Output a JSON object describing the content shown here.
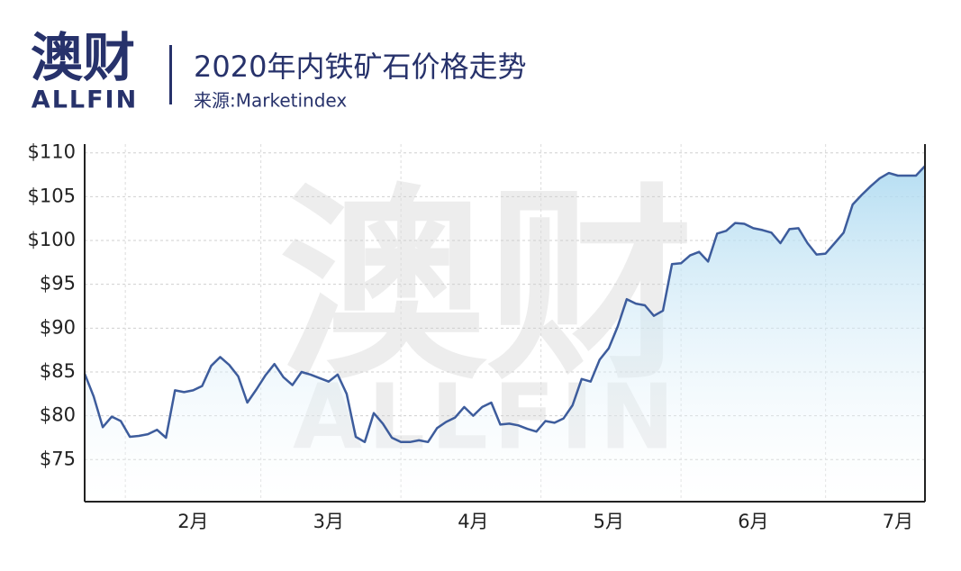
{
  "logo": {
    "mark": "澳财",
    "wordmark": "ALLFIN"
  },
  "chart_data": {
    "type": "line",
    "title": "2020年内铁矿石价格走势",
    "subtitle": "来源:Marketindex",
    "watermark": {
      "mark": "澳财",
      "wordmark": "ALLFIN"
    },
    "color": "#3d5c9c",
    "fill": true,
    "grid": true,
    "categories": [
      null,
      null,
      null,
      null,
      null,
      null,
      null,
      null,
      null,
      null,
      null,
      null,
      "2月",
      null,
      null,
      null,
      null,
      null,
      null,
      null,
      null,
      null,
      null,
      null,
      null,
      null,
      null,
      "3月",
      null,
      null,
      null,
      null,
      null,
      null,
      null,
      null,
      null,
      null,
      null,
      null,
      null,
      null,
      null,
      "4月",
      null,
      null,
      null,
      null,
      null,
      null,
      null,
      null,
      null,
      null,
      null,
      null,
      null,
      null,
      "5月",
      null,
      null,
      null,
      null,
      null,
      null,
      null,
      null,
      null,
      null,
      null,
      null,
      null,
      null,
      null,
      "6月",
      null,
      null,
      null,
      null,
      null,
      null,
      null,
      null,
      null,
      null,
      null,
      null,
      null,
      null,
      null,
      "7月",
      null,
      null,
      null
    ],
    "values": [
      84.8,
      82.2,
      78.7,
      79.9,
      79.4,
      77.6,
      77.7,
      77.9,
      78.4,
      77.5,
      82.9,
      82.7,
      82.9,
      83.4,
      85.7,
      86.7,
      85.8,
      84.5,
      81.5,
      83.0,
      84.6,
      85.9,
      84.4,
      83.5,
      85.0,
      84.7,
      84.3,
      83.9,
      84.7,
      82.5,
      77.6,
      77.0,
      80.3,
      79.1,
      77.5,
      77.0,
      77.0,
      77.2,
      77.0,
      78.6,
      79.3,
      79.8,
      81.0,
      80.0,
      81.0,
      81.5,
      79.0,
      79.1,
      78.9,
      78.5,
      78.2,
      79.4,
      79.2,
      79.7,
      81.2,
      84.2,
      83.9,
      86.4,
      87.7,
      90.2,
      93.3,
      92.8,
      92.6,
      91.4,
      92.0,
      97.3,
      97.4,
      98.3,
      98.7,
      97.6,
      100.8,
      101.1,
      102.0,
      101.9,
      101.4,
      101.2,
      100.9,
      99.7,
      101.3,
      101.4,
      99.7,
      98.4,
      98.5,
      99.7,
      100.9,
      104.1,
      105.2,
      106.2,
      107.1,
      107.7,
      107.4,
      107.4,
      107.4,
      108.5
    ],
    "ylim": [
      70.2,
      111
    ],
    "yticks": [
      {
        "value": 75,
        "label": "$75"
      },
      {
        "value": 80,
        "label": "$80"
      },
      {
        "value": 85,
        "label": "$85"
      },
      {
        "value": 90,
        "label": "$90"
      },
      {
        "value": 95,
        "label": "$95"
      },
      {
        "value": 100,
        "label": "$100"
      },
      {
        "value": 105,
        "label": "$105"
      },
      {
        "value": 110,
        "label": "$110"
      }
    ]
  }
}
